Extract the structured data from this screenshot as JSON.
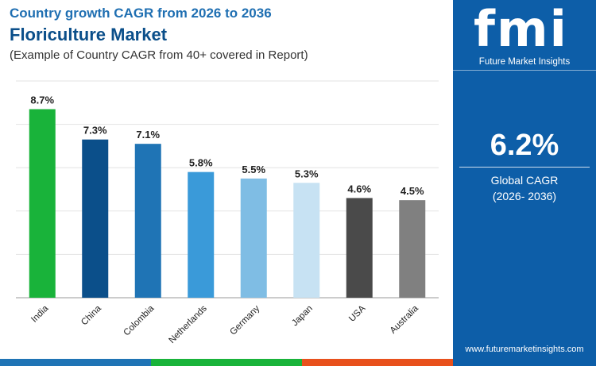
{
  "header": {
    "supertitle": "Country growth CAGR from 2026 to 2036",
    "title": "Floriculture Market",
    "subtitle": "(Example of Country CAGR from 40+ covered in Report)"
  },
  "chart_data": {
    "type": "bar",
    "categories": [
      "India",
      "China",
      "Colombia",
      "Netherlands",
      "Germany",
      "Japan",
      "USA",
      "Australia"
    ],
    "values": [
      8.7,
      7.3,
      7.1,
      5.8,
      5.5,
      5.3,
      4.6,
      4.5
    ],
    "value_labels": [
      "8.7%",
      "7.3%",
      "7.1%",
      "5.8%",
      "5.5%",
      "5.3%",
      "4.6%",
      "4.5%"
    ],
    "colors": [
      "#19b33a",
      "#0b4f8a",
      "#1f74b5",
      "#3a9ad9",
      "#7fbde4",
      "#c7e2f3",
      "#4a4a4a",
      "#808080"
    ],
    "ylim": [
      0,
      10
    ],
    "grid": true,
    "xlabel": "",
    "ylabel": ""
  },
  "sidebar": {
    "logo": "fmi",
    "brand": "Future Market Insights",
    "global_value": "6.2%",
    "global_label": "Global CAGR",
    "global_period": "(2026- 2036)",
    "website": "www.futuremarketinsights.com"
  },
  "footer_colors": [
    "#1f74b5",
    "#19b33a",
    "#e8501c",
    "#0d5ea8"
  ]
}
